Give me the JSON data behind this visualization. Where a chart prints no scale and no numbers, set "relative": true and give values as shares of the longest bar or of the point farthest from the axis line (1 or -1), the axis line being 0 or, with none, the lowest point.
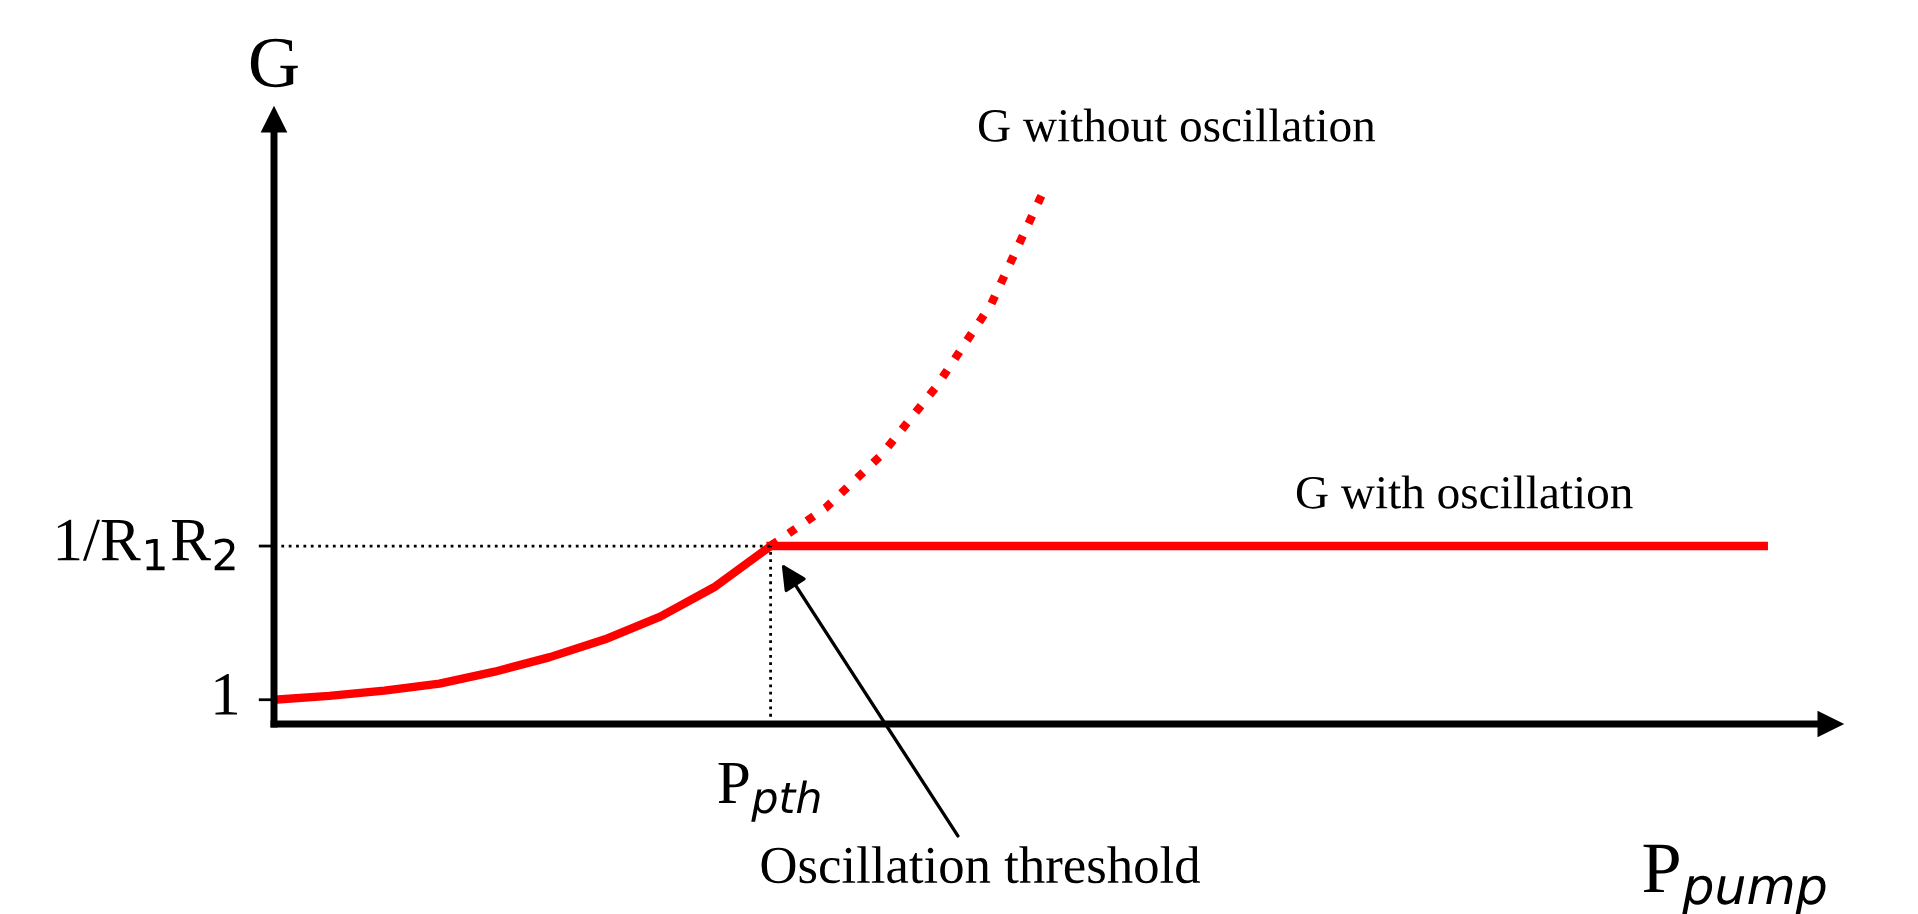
{
  "chart_data": {
    "type": "line",
    "xlabel": "P$_{pump}$",
    "ylabel": "G",
    "relative": true,
    "categories": [
      null,
      null,
      null,
      null,
      null,
      null,
      null,
      null,
      null,
      null,
      null,
      null,
      null,
      null,
      null,
      null,
      null,
      null,
      null,
      null,
      null,
      null,
      null,
      null,
      null,
      null,
      null,
      null,
      null
    ],
    "series": [
      {
        "color": "#ff0000",
        "line_style": "solid",
        "values": [
          0.045,
          0.052,
          0.062,
          0.075,
          0.097,
          0.124,
          0.157,
          0.199,
          0.255,
          0.33,
          null,
          null,
          null,
          null,
          null,
          null,
          null,
          null,
          null,
          null,
          null,
          null,
          null,
          null,
          null,
          null,
          null,
          null,
          null
        ]
      },
      {
        "name": "G without oscillation",
        "color": "#ff0000",
        "line_style": "dotted",
        "values": [
          null,
          null,
          null,
          null,
          null,
          null,
          null,
          null,
          null,
          0.33,
          0.401,
          0.498,
          0.625,
          0.779,
          1,
          null,
          null,
          null,
          null,
          null,
          null,
          null,
          null,
          null,
          null,
          null,
          null,
          null,
          null
        ]
      },
      {
        "name": "G with oscillation",
        "color": "#ff0000",
        "line_style": "solid",
        "values": [
          null,
          null,
          null,
          null,
          null,
          null,
          null,
          null,
          null,
          0.33,
          0.33,
          0.33,
          0.33,
          0.33,
          0.33,
          0.33,
          0.33,
          0.33,
          0.33,
          0.33,
          0.33,
          0.33,
          0.33,
          0.33,
          0.33,
          0.33,
          0.33,
          0.33,
          null
        ]
      }
    ],
    "ref_lines": [
      {
        "axis": "y",
        "value": 0.33,
        "line_style": "dotted",
        "color": "#000000"
      }
    ],
    "annotations": [
      "1",
      "1/R$_{1}$R$_{2}$",
      "P$_{pth}$",
      "Oscillation threshold"
    ]
  }
}
